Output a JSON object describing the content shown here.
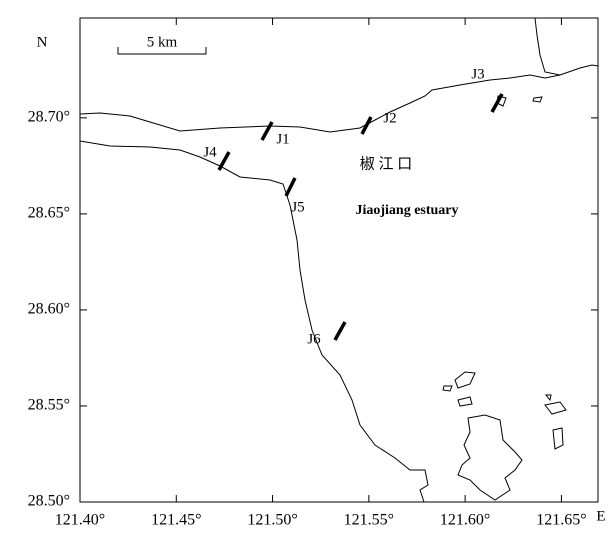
{
  "map": {
    "north_label": "N",
    "east_label": "E",
    "scale_bar": "5 km",
    "estuary_cn": "椒 江 口",
    "estuary_en": "Jiaojiang estuary",
    "stations": [
      "J1",
      "J2",
      "J3",
      "J4",
      "J5",
      "J6"
    ],
    "xlim": [
      121.4,
      121.669
    ],
    "ylim": [
      28.5,
      28.752
    ],
    "xticks": [
      {
        "value": 121.4,
        "label": "121.40°"
      },
      {
        "value": 121.45,
        "label": "121.45°"
      },
      {
        "value": 121.5,
        "label": "121.50°"
      },
      {
        "value": 121.55,
        "label": "121.55°"
      },
      {
        "value": 121.6,
        "label": "121.60°"
      },
      {
        "value": 121.65,
        "label": "121.65°"
      }
    ],
    "yticks": [
      {
        "value": 28.5,
        "label": "28.50°"
      },
      {
        "value": 28.55,
        "label": "28.55°"
      },
      {
        "value": 28.6,
        "label": "28.60°"
      },
      {
        "value": 28.65,
        "label": "28.65°"
      },
      {
        "value": 28.7,
        "label": "28.70°"
      }
    ]
  }
}
